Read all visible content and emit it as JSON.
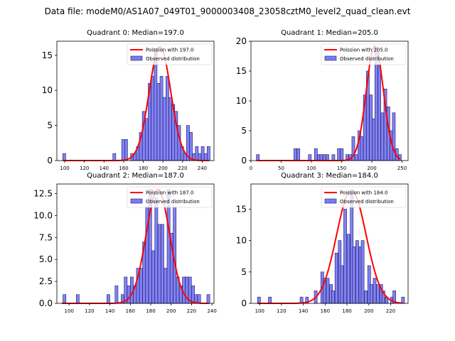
{
  "suptitle": "Data file: modeM0/AS1A07_049T01_9000003408_23058cztM0_level2_quad_clean.evt",
  "colors": {
    "bar_fill": "#7b7bf0",
    "bar_edge": "#1a1a6e",
    "curve": "#ff0000"
  },
  "chart_data": [
    {
      "type": "bar",
      "title": "Quadrant 0: Median=197.0",
      "legend": [
        "Poission with 197.0",
        "Observed distribution"
      ],
      "legend_position": "top-right",
      "median": 197.0,
      "xlim": [
        92,
        252
      ],
      "ylim": [
        0,
        17
      ],
      "xticks": [
        100,
        120,
        140,
        160,
        180,
        200,
        220,
        240
      ],
      "yticks": [
        "0",
        "5",
        "10",
        "15"
      ],
      "ytick_values": [
        0,
        5,
        10,
        15
      ],
      "bin_width": 3,
      "bins": [
        [
          98,
          1
        ],
        [
          149,
          1
        ],
        [
          158,
          3
        ],
        [
          161,
          3
        ],
        [
          167,
          1
        ],
        [
          170,
          1
        ],
        [
          173,
          2
        ],
        [
          176,
          4
        ],
        [
          179,
          7
        ],
        [
          182,
          6
        ],
        [
          185,
          11
        ],
        [
          188,
          12
        ],
        [
          191,
          16
        ],
        [
          194,
          11
        ],
        [
          197,
          12
        ],
        [
          200,
          9
        ],
        [
          203,
          12
        ],
        [
          206,
          9
        ],
        [
          209,
          8
        ],
        [
          212,
          7
        ],
        [
          215,
          5
        ],
        [
          218,
          2
        ],
        [
          221,
          1
        ],
        [
          224,
          5
        ],
        [
          227,
          4
        ],
        [
          230,
          1
        ],
        [
          233,
          2
        ],
        [
          236,
          1
        ],
        [
          239,
          2
        ],
        [
          242,
          1
        ],
        [
          245,
          2
        ]
      ],
      "curve_peak": 16.2,
      "curve_sigma": 11,
      "curve_range": [
        98,
        247
      ]
    },
    {
      "type": "bar",
      "title": "Quadrant 1: Median=205.0",
      "legend": [
        "Poission with 205.0",
        "Observed distribution"
      ],
      "legend_position": "top-right",
      "median": 205.0,
      "xlim": [
        0,
        260
      ],
      "ylim": [
        0,
        20
      ],
      "xticks": [
        0,
        50,
        100,
        150,
        200,
        250
      ],
      "yticks": [
        "0",
        "5",
        "10",
        "15",
        "20"
      ],
      "ytick_values": [
        0,
        5,
        10,
        15,
        20
      ],
      "bin_width": 4.8,
      "bins": [
        [
          9,
          1
        ],
        [
          71,
          2
        ],
        [
          76,
          2
        ],
        [
          95,
          1
        ],
        [
          105,
          2
        ],
        [
          110,
          1
        ],
        [
          114,
          1
        ],
        [
          119,
          1
        ],
        [
          124,
          1
        ],
        [
          134,
          1
        ],
        [
          143,
          2
        ],
        [
          148,
          2
        ],
        [
          157,
          1
        ],
        [
          162,
          1
        ],
        [
          167,
          4
        ],
        [
          172,
          1
        ],
        [
          177,
          5
        ],
        [
          181,
          4
        ],
        [
          186,
          11
        ],
        [
          191,
          15
        ],
        [
          196,
          11
        ],
        [
          201,
          7
        ],
        [
          205,
          19
        ],
        [
          210,
          16
        ],
        [
          215,
          8
        ],
        [
          220,
          12
        ],
        [
          225,
          9
        ],
        [
          230,
          5
        ],
        [
          234,
          8
        ],
        [
          239,
          2
        ],
        [
          244,
          1
        ]
      ],
      "curve_peak": 19.2,
      "curve_sigma": 14.3,
      "curve_range": [
        9,
        247
      ]
    },
    {
      "type": "bar",
      "title": "Quadrant 2: Median=187.0",
      "legend": [
        "Poission with 187.0",
        "Observed distribution"
      ],
      "legend_position": "top-right",
      "median": 187.0,
      "xlim": [
        88,
        242
      ],
      "ylim": [
        0,
        13.6
      ],
      "xticks": [
        100,
        120,
        140,
        160,
        180,
        200,
        220,
        240
      ],
      "yticks": [
        "0.0",
        "2.5",
        "5.0",
        "7.5",
        "10.0",
        "12.5"
      ],
      "ytick_values": [
        0,
        2.5,
        5,
        7.5,
        10,
        12.5
      ],
      "bin_width": 2.9,
      "bins": [
        [
          94,
          1
        ],
        [
          107,
          1
        ],
        [
          137,
          1
        ],
        [
          145,
          2
        ],
        [
          151,
          1
        ],
        [
          154,
          3
        ],
        [
          157,
          2
        ],
        [
          160,
          3
        ],
        [
          163,
          2
        ],
        [
          166,
          4
        ],
        [
          169,
          4
        ],
        [
          172,
          7
        ],
        [
          175,
          11
        ],
        [
          178,
          13
        ],
        [
          181,
          6
        ],
        [
          184,
          12
        ],
        [
          187,
          9
        ],
        [
          190,
          9
        ],
        [
          193,
          4
        ],
        [
          196,
          13
        ],
        [
          199,
          8
        ],
        [
          202,
          11
        ],
        [
          205,
          3
        ],
        [
          208,
          2
        ],
        [
          211,
          3
        ],
        [
          214,
          3
        ],
        [
          217,
          3
        ],
        [
          220,
          2
        ],
        [
          223,
          1
        ],
        [
          226,
          1
        ],
        [
          235,
          1
        ]
      ],
      "curve_peak": 13.0,
      "curve_sigma": 11.5,
      "curve_range": [
        93,
        237
      ]
    },
    {
      "type": "bar",
      "title": "Quadrant 3: Median=184.0",
      "legend": [
        "Poission with 184.0",
        "Observed distribution"
      ],
      "legend_position": "top-right",
      "median": 184.0,
      "xlim": [
        92,
        236
      ],
      "ylim": [
        0,
        19
      ],
      "xticks": [
        100,
        120,
        140,
        160,
        180,
        200,
        220
      ],
      "yticks": [
        "0",
        "5",
        "10",
        "15"
      ],
      "ytick_values": [
        0,
        5,
        10,
        15
      ],
      "bin_width": 2.7,
      "bins": [
        [
          98,
          1
        ],
        [
          108,
          1
        ],
        [
          137,
          1
        ],
        [
          142,
          1
        ],
        [
          150,
          2
        ],
        [
          156,
          5
        ],
        [
          158,
          4
        ],
        [
          161,
          4
        ],
        [
          164,
          3
        ],
        [
          166,
          2
        ],
        [
          169,
          8
        ],
        [
          172,
          10
        ],
        [
          174,
          6
        ],
        [
          177,
          15
        ],
        [
          180,
          11
        ],
        [
          183,
          18
        ],
        [
          185,
          9
        ],
        [
          188,
          10
        ],
        [
          191,
          9
        ],
        [
          193,
          10
        ],
        [
          196,
          2
        ],
        [
          199,
          6
        ],
        [
          201,
          3
        ],
        [
          204,
          4
        ],
        [
          207,
          3
        ],
        [
          210,
          3
        ],
        [
          212,
          2
        ],
        [
          215,
          1
        ],
        [
          220,
          1
        ],
        [
          222,
          2
        ],
        [
          230,
          1
        ]
      ],
      "curve_peak": 18.0,
      "curve_sigma": 13.5,
      "curve_range": [
        98,
        231
      ]
    }
  ]
}
